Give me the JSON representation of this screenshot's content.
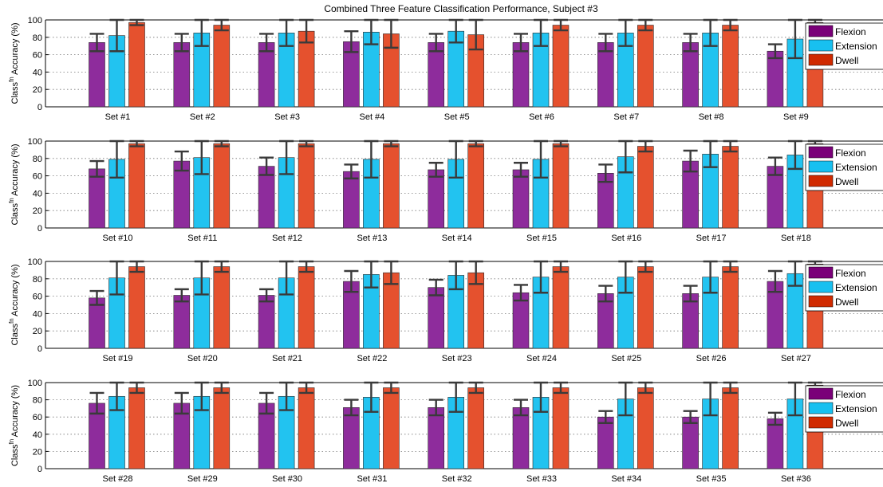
{
  "chart_data": {
    "type": "bar",
    "title": "Combined Three Feature Classification Performance, Subject #3",
    "ylabel_main": "Accuracy (%)",
    "ylabel_prefix": "Class",
    "ylabel_superscript": "fn",
    "ylim": [
      0,
      100
    ],
    "yticks": [
      "0",
      "20",
      "40",
      "60",
      "80",
      "100"
    ],
    "grid": true,
    "legend_placement": "right",
    "series_names": [
      "Flexion",
      "Extension",
      "Dwell"
    ],
    "colors": {
      "Flexion": "#8E2C9C",
      "Extension": "#22C3F0",
      "Dwell": "#E5512E"
    },
    "legend_colors": {
      "Flexion": "#7A0078",
      "Extension": "#18C0F0",
      "Dwell": "#D02A00"
    },
    "error_bar_color": "#3A3A3A",
    "panels": [
      {
        "categories": [
          "Set #1",
          "Set #2",
          "Set #3",
          "Set #4",
          "Set #5",
          "Set #6",
          "Set #7",
          "Set #8",
          "Set #9"
        ],
        "series": [
          {
            "name": "Flexion",
            "values": [
              74,
              74,
              74,
              75,
              74,
              74,
              74,
              74,
              64
            ],
            "errors": [
              10,
              10,
              10,
              12,
              10,
              10,
              10,
              10,
              8
            ]
          },
          {
            "name": "Extension",
            "values": [
              82,
              85,
              85,
              86,
              87,
              85,
              85,
              85,
              78
            ],
            "errors": [
              18,
              15,
              15,
              14,
              13,
              15,
              15,
              15,
              22
            ]
          },
          {
            "name": "Dwell",
            "values": [
              97,
              94,
              87,
              84,
              83,
              94,
              94,
              94,
              97
            ],
            "errors": [
              3,
              6,
              13,
              16,
              17,
              6,
              6,
              6,
              3
            ]
          }
        ]
      },
      {
        "categories": [
          "Set #10",
          "Set #11",
          "Set #12",
          "Set #13",
          "Set #14",
          "Set #15",
          "Set #16",
          "Set #17",
          "Set #18"
        ],
        "series": [
          {
            "name": "Flexion",
            "values": [
              68,
              77,
              71,
              65,
              67,
              67,
              63,
              77,
              71
            ],
            "errors": [
              9,
              11,
              10,
              8,
              8,
              8,
              10,
              12,
              10
            ]
          },
          {
            "name": "Extension",
            "values": [
              79,
              81,
              81,
              79,
              79,
              79,
              82,
              85,
              84
            ],
            "errors": [
              21,
              19,
              19,
              21,
              21,
              21,
              18,
              15,
              16
            ]
          },
          {
            "name": "Dwell",
            "values": [
              97,
              97,
              97,
              97,
              97,
              97,
              94,
              94,
              97
            ],
            "errors": [
              3,
              3,
              3,
              3,
              3,
              3,
              6,
              6,
              3
            ]
          }
        ]
      },
      {
        "categories": [
          "Set #19",
          "Set #20",
          "Set #21",
          "Set #22",
          "Set #23",
          "Set #24",
          "Set #25",
          "Set #26",
          "Set #27"
        ],
        "series": [
          {
            "name": "Flexion",
            "values": [
              58,
              61,
              61,
              77,
              70,
              64,
              63,
              63,
              77
            ],
            "errors": [
              8,
              7,
              7,
              12,
              9,
              9,
              9,
              9,
              12
            ]
          },
          {
            "name": "Extension",
            "values": [
              81,
              81,
              81,
              85,
              84,
              82,
              82,
              82,
              86
            ],
            "errors": [
              19,
              19,
              19,
              15,
              16,
              18,
              18,
              18,
              14
            ]
          },
          {
            "name": "Dwell",
            "values": [
              94,
              94,
              94,
              87,
              87,
              94,
              94,
              94,
              97
            ],
            "errors": [
              6,
              6,
              6,
              13,
              13,
              6,
              6,
              6,
              3
            ]
          }
        ]
      },
      {
        "categories": [
          "Set #28",
          "Set #29",
          "Set #30",
          "Set #31",
          "Set #32",
          "Set #33",
          "Set #34",
          "Set #35",
          "Set #36"
        ],
        "series": [
          {
            "name": "Flexion",
            "values": [
              76,
              76,
              76,
              71,
              71,
              71,
              60,
              60,
              58
            ],
            "errors": [
              12,
              12,
              12,
              9,
              9,
              9,
              7,
              7,
              7
            ]
          },
          {
            "name": "Extension",
            "values": [
              84,
              84,
              84,
              83,
              83,
              83,
              81,
              81,
              81
            ],
            "errors": [
              16,
              16,
              16,
              17,
              17,
              17,
              19,
              19,
              19
            ]
          },
          {
            "name": "Dwell",
            "values": [
              94,
              94,
              94,
              94,
              94,
              94,
              94,
              94,
              97
            ],
            "errors": [
              6,
              6,
              6,
              6,
              6,
              6,
              6,
              6,
              3
            ]
          }
        ]
      }
    ]
  }
}
